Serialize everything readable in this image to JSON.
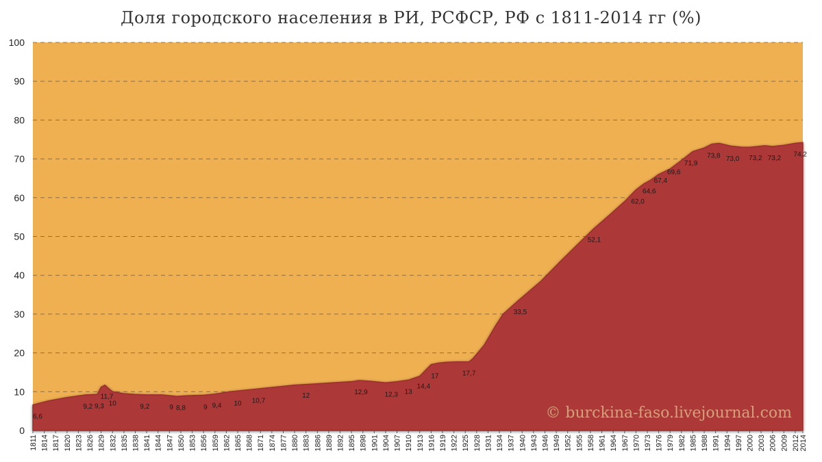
{
  "chart_data": {
    "type": "area",
    "title": "Доля городского населения в РИ, РСФСР, РФ с 1811-2014 гг (%)",
    "xlabel": "",
    "ylabel": "",
    "ylim": [
      0,
      100
    ],
    "yticks": [
      0,
      10,
      20,
      30,
      40,
      50,
      60,
      70,
      80,
      90,
      100
    ],
    "xlim": [
      1811,
      2014
    ],
    "xticks": [
      1811,
      1814,
      1817,
      1820,
      1823,
      1826,
      1829,
      1832,
      1835,
      1838,
      1841,
      1844,
      1847,
      1850,
      1853,
      1856,
      1859,
      1862,
      1865,
      1868,
      1871,
      1874,
      1877,
      1880,
      1883,
      1886,
      1889,
      1892,
      1895,
      1898,
      1901,
      1904,
      1907,
      1910,
      1913,
      1916,
      1919,
      1922,
      1925,
      1928,
      1931,
      1934,
      1937,
      1940,
      1943,
      1946,
      1949,
      1952,
      1955,
      1958,
      1961,
      1964,
      1967,
      1970,
      1973,
      1976,
      1979,
      1982,
      1985,
      1988,
      1991,
      1994,
      1997,
      2000,
      2003,
      2006,
      2009,
      2012,
      2014
    ],
    "grid": true,
    "colors": {
      "area": "#ad3838",
      "background": "#efb052",
      "grid": "#7a5c3a"
    },
    "series": [
      {
        "x": [
          1811,
          1815,
          1820,
          1825,
          1828,
          1829,
          1830,
          1831,
          1832,
          1835,
          1838,
          1841,
          1845,
          1847,
          1849,
          1852,
          1856,
          1859,
          1863,
          1867,
          1870,
          1875,
          1880,
          1885,
          1890,
          1895,
          1897,
          1900,
          1904,
          1907,
          1910,
          1913,
          1915,
          1916,
          1918,
          1920,
          1923,
          1926,
          1927,
          1930,
          1933,
          1935,
          1939,
          1945,
          1950,
          1955,
          1959,
          1963,
          1967,
          1970,
          1972,
          1974,
          1976,
          1979,
          1982,
          1985,
          1988,
          1990,
          1992,
          1995,
          1998,
          2000,
          2002,
          2004,
          2006,
          2009,
          2012,
          2014
        ],
        "y": [
          6.6,
          7.6,
          8.5,
          9.2,
          9.3,
          11.2,
          11.7,
          10.8,
          10,
          9.5,
          9.3,
          9.2,
          9.2,
          9,
          8.8,
          9,
          9.1,
          9.4,
          10,
          10.4,
          10.7,
          11.2,
          11.7,
          12,
          12.3,
          12.6,
          12.9,
          12.7,
          12.3,
          12.6,
          13,
          14,
          16,
          17,
          17.4,
          17.6,
          17.7,
          17.7,
          18.5,
          22,
          27,
          30,
          33.5,
          38.5,
          43.5,
          48.3,
          52.1,
          55.5,
          59,
          62,
          63.5,
          64.6,
          66,
          67.4,
          69.6,
          71.9,
          72.8,
          73.8,
          74.0,
          73.3,
          73.0,
          73.0,
          73.2,
          73.4,
          73.2,
          73.5,
          74.0,
          74.2
        ]
      }
    ],
    "data_labels": [
      {
        "x": 1811,
        "y": 6.6,
        "label": "6,6"
      },
      {
        "x": 1825.5,
        "y": 9.2,
        "label": "9,2"
      },
      {
        "x": 1828.5,
        "y": 9.3,
        "label": "9,3"
      },
      {
        "x": 1830.5,
        "y": 11.7,
        "label": "11,7"
      },
      {
        "x": 1832,
        "y": 10,
        "label": "10"
      },
      {
        "x": 1840.5,
        "y": 9.2,
        "label": "9,2"
      },
      {
        "x": 1847.5,
        "y": 9,
        "label": "9"
      },
      {
        "x": 1850,
        "y": 8.8,
        "label": "8,8"
      },
      {
        "x": 1856.5,
        "y": 9,
        "label": "9"
      },
      {
        "x": 1859.5,
        "y": 9.4,
        "label": "9,4"
      },
      {
        "x": 1865,
        "y": 10,
        "label": "10"
      },
      {
        "x": 1870.5,
        "y": 10.7,
        "label": "10,7"
      },
      {
        "x": 1883,
        "y": 12,
        "label": "12"
      },
      {
        "x": 1897.5,
        "y": 12.9,
        "label": "12,9"
      },
      {
        "x": 1905.5,
        "y": 12.3,
        "label": "12,3"
      },
      {
        "x": 1910,
        "y": 13,
        "label": "13"
      },
      {
        "x": 1914,
        "y": 14.4,
        "label": "14,4"
      },
      {
        "x": 1917,
        "y": 17,
        "label": "17"
      },
      {
        "x": 1926,
        "y": 17.7,
        "label": "17,7"
      },
      {
        "x": 1939.5,
        "y": 33.5,
        "label": "33,5"
      },
      {
        "x": 1959,
        "y": 52.1,
        "label": "52,1"
      },
      {
        "x": 1970.5,
        "y": 62.0,
        "label": "62,0"
      },
      {
        "x": 1973.5,
        "y": 64.6,
        "label": "64,6"
      },
      {
        "x": 1976.5,
        "y": 67.4,
        "label": "67,4"
      },
      {
        "x": 1980,
        "y": 69.6,
        "label": "69,6"
      },
      {
        "x": 1984.5,
        "y": 71.9,
        "label": "71,9"
      },
      {
        "x": 1990.5,
        "y": 73.8,
        "label": "73,8"
      },
      {
        "x": 1995.5,
        "y": 73.0,
        "label": "73,0"
      },
      {
        "x": 2001.5,
        "y": 73.2,
        "label": "73,2"
      },
      {
        "x": 2006.5,
        "y": 73.2,
        "label": "73,2"
      },
      {
        "x": 2014,
        "y": 74.2,
        "label": "74,2"
      }
    ],
    "watermark": "© burckina-faso.livejournal.com"
  }
}
